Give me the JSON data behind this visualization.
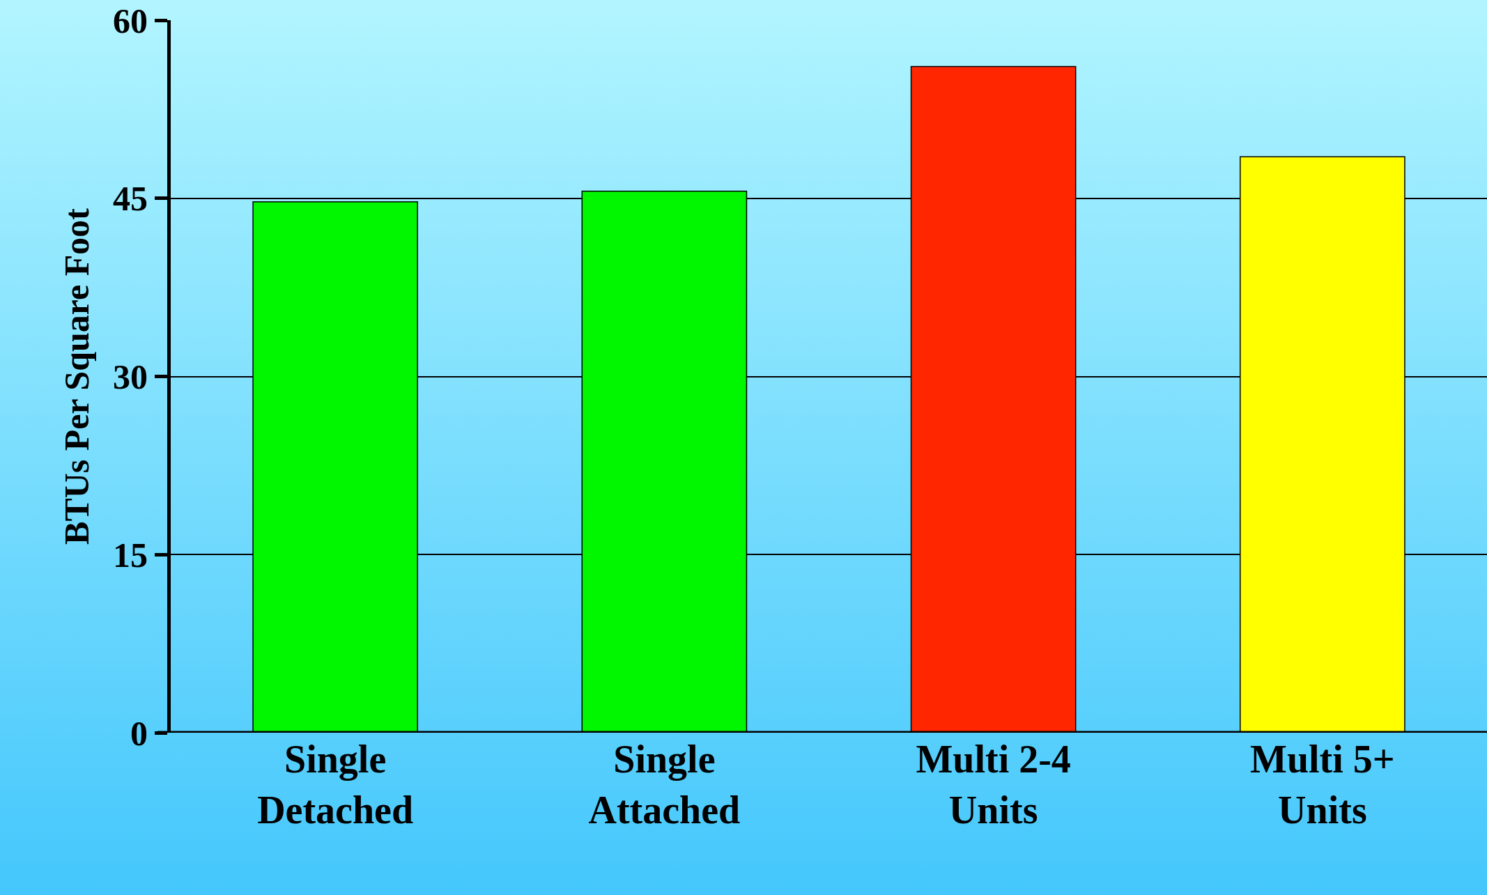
{
  "chart_data": {
    "type": "bar",
    "ylabel": "BTUs Per Square Foot",
    "categories": [
      "Single Detached",
      "Single Attached",
      "Multi 2-4 Units",
      "Multi 5+ Units"
    ],
    "values": [
      44.7,
      45.6,
      56.1,
      48.5
    ],
    "colors": [
      "#00f700",
      "#00f700",
      "#ff2600",
      "#ffff00"
    ],
    "ylim": [
      0,
      60
    ],
    "yticks": [
      0,
      15,
      30,
      45,
      60
    ],
    "grid": "y"
  }
}
